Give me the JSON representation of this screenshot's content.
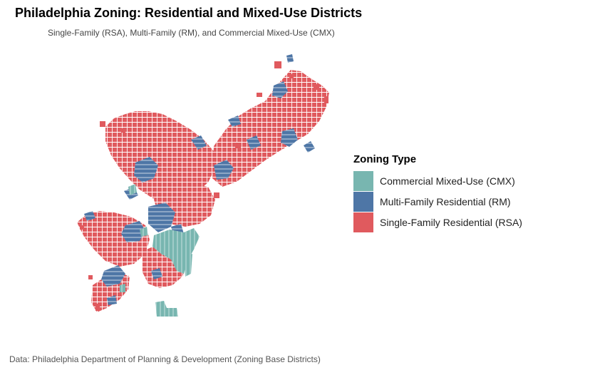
{
  "title": "Philadelphia Zoning: Residential and Mixed-Use Districts",
  "subtitle": "Single-Family (RSA), Multi-Family (RM), and Commercial Mixed-Use (CMX)",
  "caption": "Data: Philadelphia Department of Planning & Development (Zoning Base Districts)",
  "legend": {
    "title": "Zoning Type",
    "items": [
      {
        "label": "Commercial Mixed-Use (CMX)",
        "color": "#78b6b0",
        "icon": "teal-swatch"
      },
      {
        "label": "Multi-Family Residential (RM)",
        "color": "#4e76a6",
        "icon": "blue-swatch"
      },
      {
        "label": "Single-Family Residential (RSA)",
        "color": "#e05a5e",
        "icon": "red-swatch"
      }
    ]
  },
  "colors": {
    "cmx": "#78b6b0",
    "rm": "#4e76a6",
    "rsa": "#e05a5e",
    "background": "#ffffff"
  }
}
